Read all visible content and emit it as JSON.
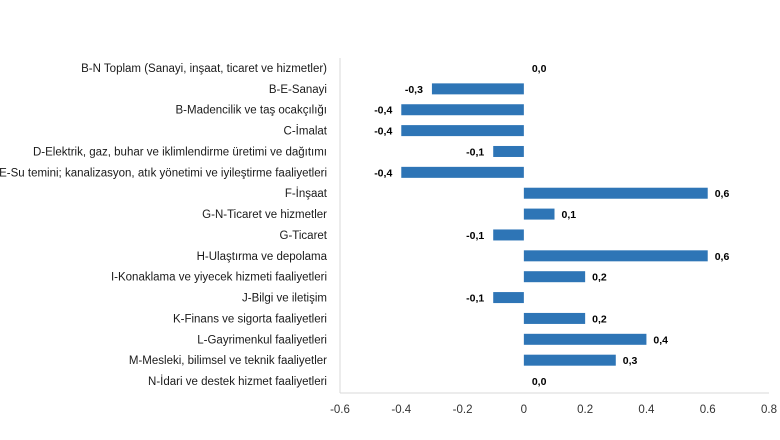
{
  "chart_data": {
    "type": "bar",
    "orientation": "horizontal",
    "categories": [
      "B-N Toplam (Sanayi, inşaat, ticaret ve hizmetler)",
      "B-E-Sanayi",
      "B-Madencilik ve taş ocakçılığı",
      "C-İmalat",
      "D-Elektrik, gaz, buhar ve iklimlendirme üretimi ve dağıtımı",
      "E-Su temini; kanalizasyon, atık yönetimi ve iyileştirme faaliyetleri",
      "F-İnşaat",
      "G-N-Ticaret ve hizmetler",
      "G-Ticaret",
      "H-Ulaştırma ve depolama",
      "I-Konaklama ve yiyecek hizmeti faaliyetleri",
      "J-Bilgi ve iletişim",
      "K-Finans ve sigorta faaliyetleri",
      "L-Gayrimenkul faaliyetleri",
      "M-Mesleki, bilimsel ve teknik faaliyetler",
      "N-İdari ve destek hizmet faaliyetleri"
    ],
    "values": [
      0.0,
      -0.3,
      -0.4,
      -0.4,
      -0.1,
      -0.4,
      0.6,
      0.1,
      -0.1,
      0.6,
      0.2,
      -0.1,
      0.2,
      0.4,
      0.3,
      0.0
    ],
    "data_labels": [
      "0,0",
      "-0,3",
      "-0,4",
      "-0,4",
      "-0,1",
      "-0,4",
      "0,6",
      "0,1",
      "-0,1",
      "0,6",
      "0,2",
      "-0,1",
      "0,2",
      "0,4",
      "0,3",
      "0,0"
    ],
    "xlim": [
      -0.6,
      0.8
    ],
    "x_ticks": [
      -0.6,
      -0.4,
      -0.2,
      0,
      0.2,
      0.4,
      0.6,
      0.8
    ],
    "x_tick_labels": [
      "-0.6",
      "-0.4",
      "-0.2",
      "0",
      "0.2",
      "0.4",
      "0.6",
      "0.8"
    ],
    "bar_color": "#2E75B6",
    "axis_color": "#D9D9D9",
    "grid": false,
    "legend": "none",
    "title": "",
    "xlabel": "",
    "ylabel": ""
  }
}
